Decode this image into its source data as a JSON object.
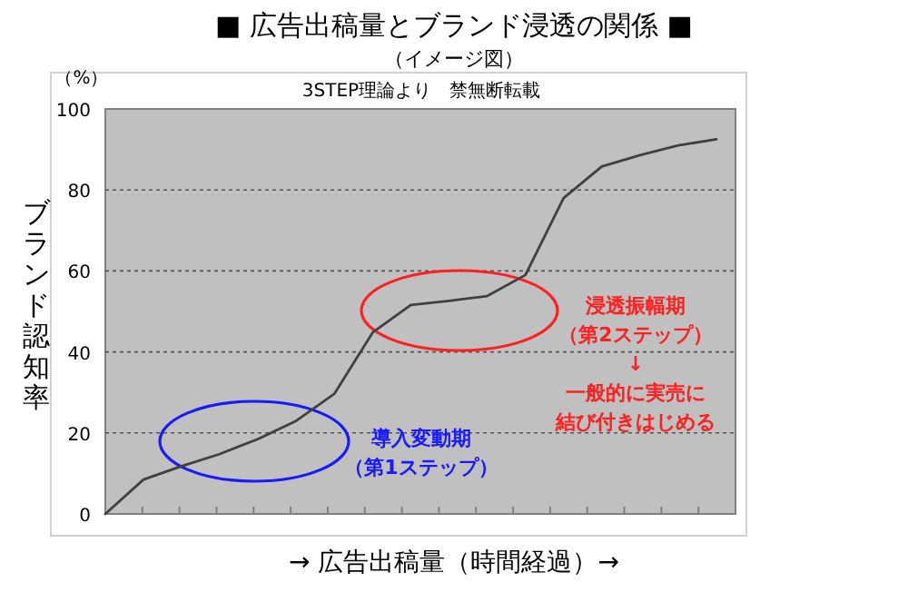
{
  "chart_data": {
    "type": "line",
    "title": "■ 広告出稿量とブランド浸透の関係 ■",
    "subtitle": "（イメージ図）",
    "xlabel": "→ 広告出稿量（時間経過）→",
    "ylabel": "ブランド認知率",
    "annotations": [
      "（%）",
      "3STEP理論より　禁無断転載",
      "導入変動期",
      "（第1ステップ）",
      "浸透振幅期",
      "（第2ステップ）",
      "↓",
      "一般的に実売に",
      "結び付きはじめる"
    ],
    "categories": [
      null,
      null,
      null,
      null,
      null,
      null,
      null,
      null,
      null,
      null,
      null,
      null,
      null,
      null,
      null,
      null,
      null
    ],
    "values": [
      0,
      8.5,
      11.8,
      14.8,
      18.5,
      23,
      29.7,
      44.8,
      51.6,
      52.6,
      53.8,
      59,
      78,
      85.8,
      88.6,
      91,
      92.5
    ],
    "color": "#404040",
    "ylim": [
      0,
      100
    ],
    "yticks": [
      0,
      20,
      40,
      60,
      80,
      100
    ],
    "grid": "y"
  }
}
